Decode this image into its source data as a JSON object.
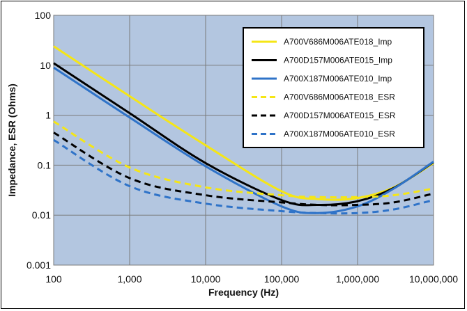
{
  "chart_data": {
    "type": "line",
    "xscale": "log",
    "yscale": "log",
    "xlim": [
      100,
      10000000
    ],
    "ylim": [
      0.001,
      100
    ],
    "xlabel": "Frequency (Hz)",
    "ylabel": "Impedance, ESR (Ohms)",
    "x_ticks": [
      "100",
      "1,000",
      "10,000",
      "100,000",
      "1,000,000",
      "10,000,000"
    ],
    "y_ticks": [
      "0.001",
      "0.01",
      "0.1",
      "1",
      "10",
      "100"
    ],
    "grid": true,
    "legend_position": "top-right",
    "plot_background": "#b3c6e0",
    "x": [
      100,
      1000,
      10000,
      100000,
      300000,
      1000000,
      3000000,
      10000000
    ],
    "series": [
      {
        "name": "A700V686M006ATE018_Imp",
        "color": "#f5e616",
        "dash": "solid",
        "values": [
          24,
          2.4,
          0.25,
          0.03,
          0.021,
          0.022,
          0.036,
          0.11
        ]
      },
      {
        "name": "A700D157M006ATE015_Imp",
        "color": "#000000",
        "dash": "solid",
        "values": [
          11,
          1.1,
          0.11,
          0.02,
          0.016,
          0.019,
          0.035,
          0.115
        ]
      },
      {
        "name": "A700X187M006ATE010_Imp",
        "color": "#2f73c8",
        "dash": "solid",
        "values": [
          9,
          0.9,
          0.095,
          0.015,
          0.011,
          0.015,
          0.034,
          0.118
        ]
      },
      {
        "name": "A700V686M006ATE018_ESR",
        "color": "#f5e616",
        "dash": "dashed",
        "values": [
          0.75,
          0.09,
          0.036,
          0.025,
          0.023,
          0.023,
          0.025,
          0.034
        ]
      },
      {
        "name": "A700D157M006ATE015_ESR",
        "color": "#000000",
        "dash": "dashed",
        "values": [
          0.45,
          0.055,
          0.025,
          0.018,
          0.016,
          0.016,
          0.018,
          0.027
        ]
      },
      {
        "name": "A700X187M006ATE010_ESR",
        "color": "#2f73c8",
        "dash": "dashed",
        "values": [
          0.32,
          0.038,
          0.017,
          0.012,
          0.011,
          0.011,
          0.013,
          0.02
        ]
      }
    ]
  }
}
